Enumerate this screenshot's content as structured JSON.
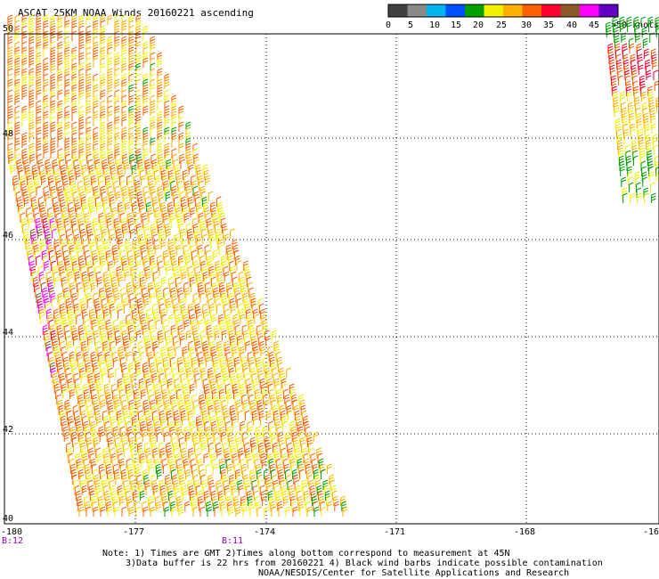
{
  "title": "ASCAT 25KM NOAA Winds 20160221 ascending",
  "legend": {
    "unit_label": ">50 knots",
    "ticks": [
      "0",
      "5",
      "10",
      "15",
      "20",
      "25",
      "30",
      "35",
      "40",
      "45"
    ],
    "colors": [
      "#404040",
      "#8a8a8a",
      "#00b4f0",
      "#0050ff",
      "#00a000",
      "#f0f000",
      "#ffb000",
      "#ff6000",
      "#ff0030",
      "#8b5a2b",
      "#ff00ff",
      "#6000c0"
    ]
  },
  "axes": {
    "lon_ticks": [
      "-180",
      "-177",
      "-174",
      "-171",
      "-168",
      "-16"
    ],
    "lat_ticks": [
      "50",
      "48",
      "46",
      "44",
      "42",
      "40"
    ]
  },
  "times": {
    "left": "B:12",
    "mid": "B:11"
  },
  "notes": {
    "line1": "Note: 1) Times are GMT 2)Times along bottom correspond to measurement at 45N",
    "line2": "3)Data buffer is 22 hrs from 20160221 4) Black wind barbs indicate possible contamination",
    "line3": "NOAA/NESDIS/Center for Satellite Applications and Research"
  }
}
